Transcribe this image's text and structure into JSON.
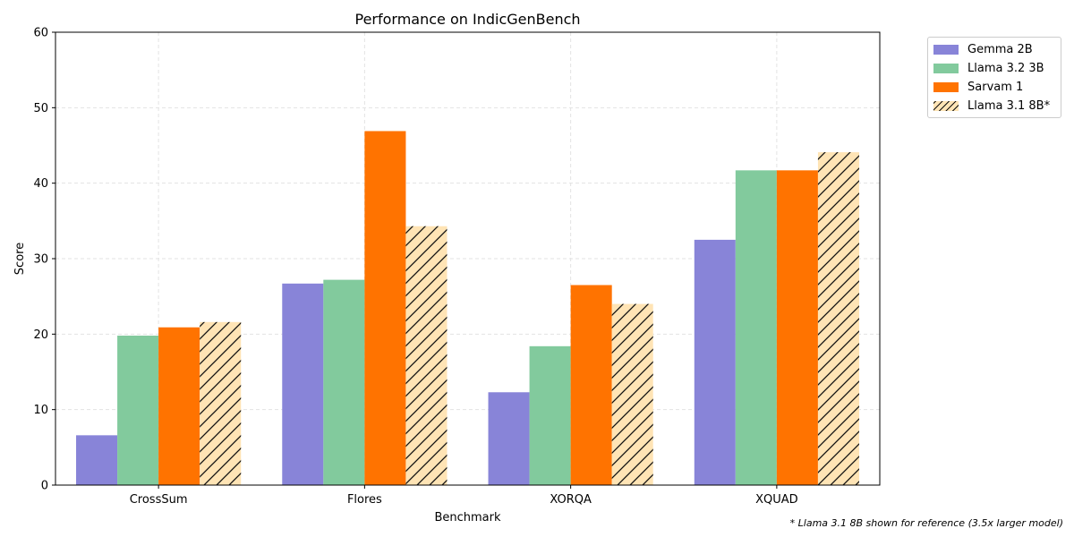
{
  "chart_data": {
    "type": "bar",
    "title": "Performance on IndicGenBench",
    "xlabel": "Benchmark",
    "ylabel": "Score",
    "ylim": [
      0,
      60
    ],
    "yticks": [
      0,
      10,
      20,
      30,
      40,
      50,
      60
    ],
    "grid": true,
    "legend_position": "upper right, outside plot",
    "categories": [
      "CrossSum",
      "Flores",
      "XORQA",
      "XQUAD"
    ],
    "series": [
      {
        "name": "Gemma 2B",
        "color": "#8884d8",
        "hatch": false,
        "values": [
          6.6,
          26.7,
          12.3,
          32.5
        ]
      },
      {
        "name": "Llama 3.2 3B",
        "color": "#82ca9d",
        "hatch": false,
        "values": [
          19.8,
          27.2,
          18.4,
          41.7
        ]
      },
      {
        "name": "Sarvam 1",
        "color": "#ff7300",
        "hatch": false,
        "values": [
          20.9,
          46.9,
          26.5,
          41.7
        ]
      },
      {
        "name": "Llama 3.1 8B*",
        "color": "#ffe4b5",
        "hatch": true,
        "values": [
          21.6,
          34.3,
          24.0,
          44.1
        ]
      }
    ],
    "footnote": "* Llama 3.1 8B shown for reference (3.5x larger model)"
  }
}
